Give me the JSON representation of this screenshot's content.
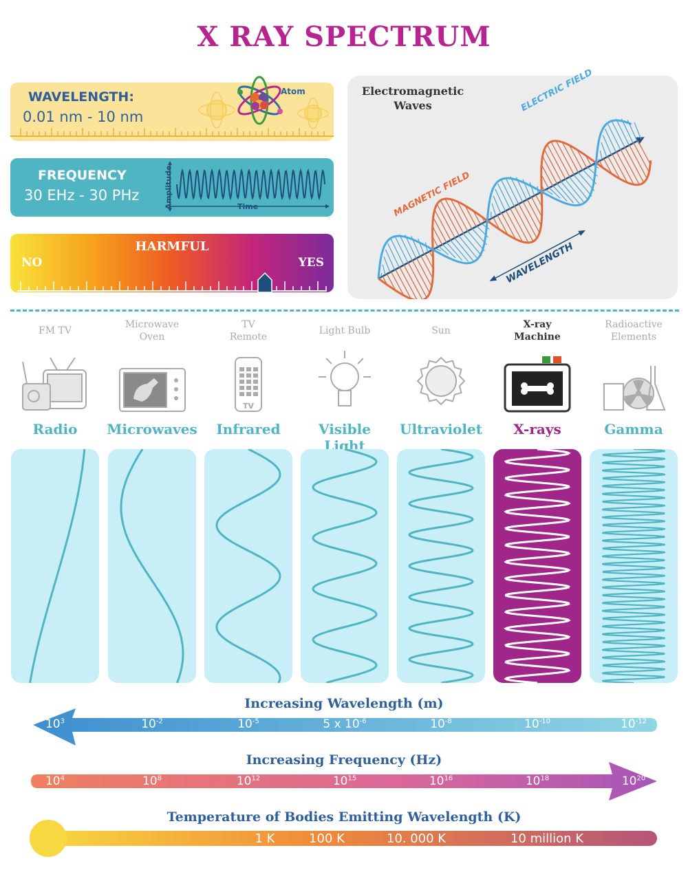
{
  "title": "X RAY SPECTRUM",
  "wavelength_panel": {
    "label": "WAVELENGTH:",
    "value": "0.01 nm - 10 nm",
    "atom_label": "Atom"
  },
  "frequency_panel": {
    "label": "FREQUENCY",
    "value": "30 EHz - 30 PHz",
    "y_label": "Amplitude",
    "x_label": "Time"
  },
  "harmful_panel": {
    "label": "HARMFUL",
    "no": "NO",
    "yes": "YES",
    "level": 0.8
  },
  "em_diagram": {
    "title_line1": "Electromagnetic",
    "title_line2": "Waves",
    "electric": "ELECTRIC FIELD",
    "magnetic": "MAGNETIC FIELD",
    "wavelength": "WAVELENGTH"
  },
  "sources": [
    {
      "line1": "FM   TV",
      "line2": "",
      "icon": "radio-tv-icon",
      "highlight": false
    },
    {
      "line1": "Microwave",
      "line2": "Oven",
      "icon": "microwave-oven-icon",
      "highlight": false
    },
    {
      "line1": "TV",
      "line2": "Remote",
      "icon": "tv-remote-icon",
      "highlight": false
    },
    {
      "line1": "Light Bulb",
      "line2": "",
      "icon": "light-bulb-icon",
      "highlight": false
    },
    {
      "line1": "Sun",
      "line2": "",
      "icon": "sun-icon",
      "highlight": false
    },
    {
      "line1": "X-ray",
      "line2": "Machine",
      "icon": "x-ray-machine-icon",
      "highlight": true
    },
    {
      "line1": "Radioactive",
      "line2": "Elements",
      "icon": "radioactive-elements-icon",
      "highlight": false
    }
  ],
  "bands": [
    {
      "name": "Radio",
      "cycles": 0.35,
      "highlight": false
    },
    {
      "name": "Microwaves",
      "cycles": 0.8,
      "highlight": false
    },
    {
      "name": "Infrared",
      "cycles": 2.3,
      "highlight": false
    },
    {
      "name": "Visible Light",
      "cycles": 4.6,
      "highlight": false
    },
    {
      "name": "Ultraviolet",
      "cycles": 7.5,
      "highlight": false
    },
    {
      "name": "X-rays",
      "cycles": 14,
      "highlight": true
    },
    {
      "name": "Gamma",
      "cycles": 30,
      "highlight": false
    }
  ],
  "axes": {
    "wavelength": {
      "title": "Increasing Wavelength (m)",
      "ticks": [
        [
          "10",
          "3"
        ],
        [
          "10",
          "-2"
        ],
        [
          "10",
          "-5"
        ],
        [
          "5 x 10",
          "-6"
        ],
        [
          "10",
          "-8"
        ],
        [
          "10",
          "-10"
        ],
        [
          "10",
          "-12"
        ]
      ]
    },
    "frequency": {
      "title": "Increasing Frequency (Hz)",
      "ticks": [
        [
          "10",
          "4"
        ],
        [
          "10",
          "8"
        ],
        [
          "10",
          "12"
        ],
        [
          "10",
          "15"
        ],
        [
          "10",
          "16"
        ],
        [
          "10",
          "18"
        ],
        [
          "10",
          "20"
        ]
      ]
    },
    "temperature": {
      "title": "Temperature of Bodies Emitting Wavelength (K)",
      "ticks": [
        "1 K",
        "100 K",
        "10. 000 K",
        "10 million K"
      ]
    }
  },
  "colors": {
    "title": "#b5248f",
    "teal": "#4fb5c2",
    "xray": "#a0268a",
    "blue": "#2f5f9a"
  }
}
